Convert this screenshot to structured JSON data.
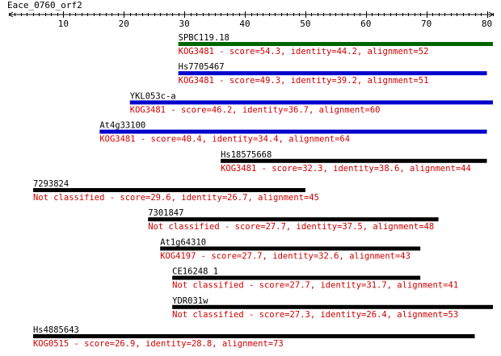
{
  "title": "Eace_0760_orf2",
  "axis": {
    "min": 1,
    "max": 81,
    "major_ticks": [
      10,
      20,
      30,
      40,
      50,
      60,
      70,
      80
    ],
    "tick_labels": [
      "10",
      "20",
      "30",
      "40",
      "50",
      "60",
      "70",
      "80"
    ],
    "minor_tick_step": 1,
    "arrows": "both-ends"
  },
  "colors": {
    "axis": "#000000",
    "text": "#000000",
    "detail_text": "#cc0000",
    "bar_green": "#006600",
    "bar_blue": "#0000cc",
    "bar_black": "#000000"
  },
  "chart_data": {
    "type": "alignment-hits",
    "hits": [
      {
        "name": "SPBC119.18",
        "start": 29,
        "end": 81,
        "bar_color": "#006600",
        "detail": "KOG3481 - score=54.3, identity=44.2, alignment=52"
      },
      {
        "name": "Hs7705467",
        "start": 29,
        "end": 80,
        "bar_color": "#0000cc",
        "detail": "KOG3481 - score=49.3, identity=39.2, alignment=51"
      },
      {
        "name": "YKL053c-a",
        "start": 21,
        "end": 81,
        "bar_color": "#0000cc",
        "detail": "KOG3481 - score=46.2, identity=36.7, alignment=60"
      },
      {
        "name": "At4g33100",
        "start": 16,
        "end": 80,
        "bar_color": "#0000cc",
        "detail": "KOG3481 - score=40.4, identity=34.4, alignment=64"
      },
      {
        "name": "Hs18575668",
        "start": 36,
        "end": 80,
        "bar_color": "#000000",
        "detail": "KOG3481 - score=32.3, identity=38.6, alignment=44"
      },
      {
        "name": "7293824",
        "start": 5,
        "end": 50,
        "bar_color": "#000000",
        "detail": "Not classified - score=29.6, identity=26.7, alignment=45"
      },
      {
        "name": "7301847",
        "start": 24,
        "end": 72,
        "bar_color": "#000000",
        "detail": "Not classified - score=27.7, identity=37.5, alignment=48"
      },
      {
        "name": "At1g64310",
        "start": 26,
        "end": 69,
        "bar_color": "#000000",
        "detail": "KOG4197 - score=27.7, identity=32.6, alignment=43"
      },
      {
        "name": "CE16248_1",
        "start": 28,
        "end": 69,
        "bar_color": "#000000",
        "detail": "Not classified - score=27.7, identity=31.7, alignment=41"
      },
      {
        "name": "YDR031w",
        "start": 28,
        "end": 81,
        "bar_color": "#000000",
        "detail": "Not classified - score=27.3, identity=26.4, alignment=53"
      },
      {
        "name": "Hs4885643",
        "start": 5,
        "end": 78,
        "bar_color": "#000000",
        "detail": "KOG0515 - score=26.9, identity=28.8, alignment=73"
      }
    ]
  }
}
